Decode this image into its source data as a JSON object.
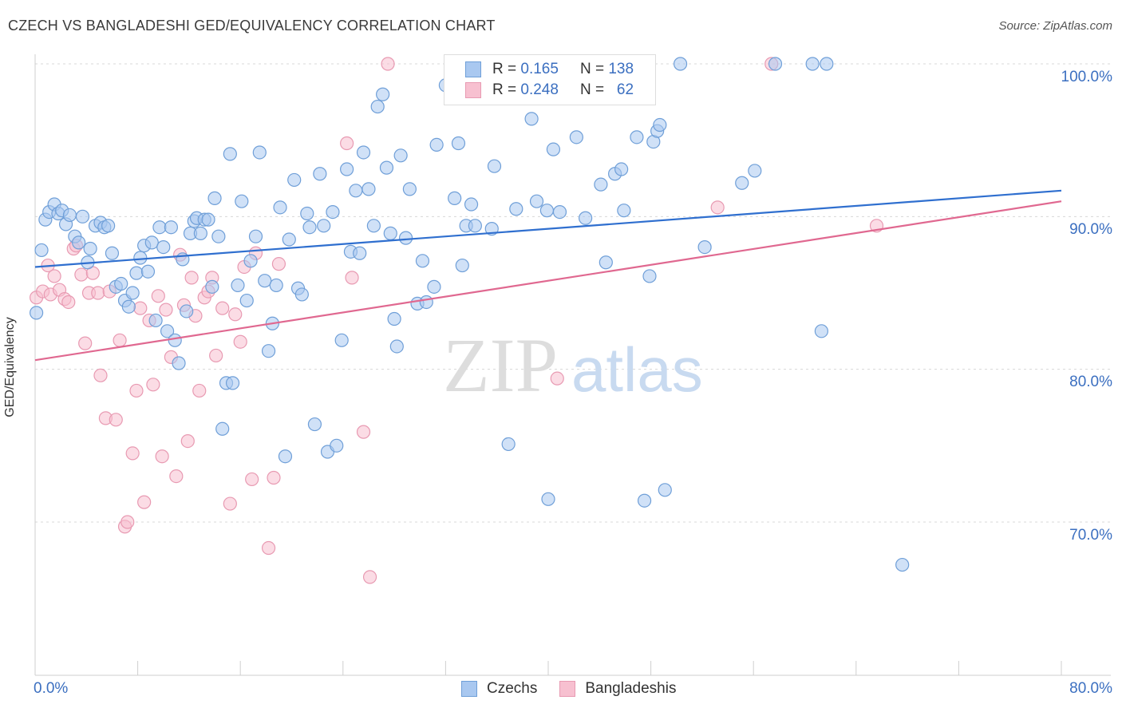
{
  "header": {
    "title": "CZECH VS BANGLADESHI GED/EQUIVALENCY CORRELATION CHART",
    "source": "Source: ZipAtlas.com"
  },
  "watermark": {
    "zip": "ZIP",
    "atlas": "atlas"
  },
  "legend": {
    "czech": {
      "r_label": "R =",
      "r_value": "0.165",
      "n_label": "N =",
      "n_value": "138"
    },
    "bangladeshi": {
      "r_label": "R =",
      "r_value": "0.248",
      "n_label": "N =",
      "n_value": "62"
    }
  },
  "bottom_legend": {
    "czech": "Czechs",
    "bangladeshi": "Bangladeshis"
  },
  "colors": {
    "czech_fill": "#a9c8f0",
    "czech_stroke": "#6f9fd8",
    "czech_line": "#2f6fcf",
    "bangla_fill": "#f7c0d0",
    "bangla_stroke": "#e89ab2",
    "bangla_line": "#e06890",
    "axis_text": "#3b6fc0",
    "grid": "#d8d8d8"
  },
  "chart_data": {
    "type": "scatter",
    "title": "CZECH VS BANGLADESHI GED/EQUIVALENCY CORRELATION CHART",
    "xlabel": "",
    "ylabel": "GED/Equivalency",
    "xlim": [
      0,
      80
    ],
    "ylim": [
      60,
      102
    ],
    "x_tick_labels": [
      "0.0%",
      "80.0%"
    ],
    "y_ticks": [
      70,
      80,
      90,
      100
    ],
    "y_tick_labels": [
      "70.0%",
      "80.0%",
      "90.0%",
      "100.0%"
    ],
    "grid": true,
    "series": [
      {
        "name": "Czechs",
        "trend": {
          "x": [
            0,
            80
          ],
          "y": [
            86.7,
            91.7
          ]
        },
        "points": [
          [
            0.1,
            83.7
          ],
          [
            0.5,
            87.8
          ],
          [
            0.8,
            89.8
          ],
          [
            1.1,
            90.3
          ],
          [
            1.5,
            90.8
          ],
          [
            1.8,
            90.2
          ],
          [
            2.1,
            90.4
          ],
          [
            2.4,
            89.5
          ],
          [
            2.7,
            90.1
          ],
          [
            3.1,
            88.7
          ],
          [
            3.4,
            88.3
          ],
          [
            3.7,
            90.0
          ],
          [
            4.1,
            87.0
          ],
          [
            4.3,
            87.9
          ],
          [
            4.7,
            89.4
          ],
          [
            5.1,
            89.6
          ],
          [
            5.4,
            89.3
          ],
          [
            5.7,
            89.4
          ],
          [
            6.0,
            87.6
          ],
          [
            6.3,
            85.4
          ],
          [
            6.7,
            85.6
          ],
          [
            7.0,
            84.5
          ],
          [
            7.3,
            84.1
          ],
          [
            7.6,
            85.0
          ],
          [
            7.9,
            86.3
          ],
          [
            8.2,
            87.3
          ],
          [
            8.5,
            88.1
          ],
          [
            8.8,
            86.4
          ],
          [
            9.1,
            88.3
          ],
          [
            9.4,
            83.2
          ],
          [
            9.7,
            89.3
          ],
          [
            10.0,
            88.0
          ],
          [
            10.3,
            82.5
          ],
          [
            10.6,
            89.3
          ],
          [
            10.9,
            81.9
          ],
          [
            11.2,
            80.4
          ],
          [
            11.5,
            87.2
          ],
          [
            11.8,
            83.8
          ],
          [
            12.1,
            88.9
          ],
          [
            12.4,
            89.7
          ],
          [
            12.6,
            89.9
          ],
          [
            12.9,
            88.9
          ],
          [
            13.2,
            89.8
          ],
          [
            13.5,
            89.8
          ],
          [
            13.8,
            85.4
          ],
          [
            14.0,
            91.2
          ],
          [
            14.3,
            88.7
          ],
          [
            14.6,
            76.1
          ],
          [
            14.9,
            79.1
          ],
          [
            15.2,
            94.1
          ],
          [
            15.4,
            79.1
          ],
          [
            15.8,
            85.5
          ],
          [
            16.1,
            91.0
          ],
          [
            16.5,
            84.5
          ],
          [
            16.8,
            87.1
          ],
          [
            17.2,
            88.7
          ],
          [
            17.5,
            94.2
          ],
          [
            17.9,
            85.8
          ],
          [
            18.2,
            81.2
          ],
          [
            18.5,
            83.0
          ],
          [
            18.8,
            85.5
          ],
          [
            19.1,
            90.6
          ],
          [
            19.5,
            74.3
          ],
          [
            19.8,
            88.5
          ],
          [
            20.2,
            92.4
          ],
          [
            20.5,
            85.3
          ],
          [
            20.8,
            84.9
          ],
          [
            21.2,
            90.2
          ],
          [
            21.4,
            89.3
          ],
          [
            21.8,
            76.4
          ],
          [
            22.2,
            92.8
          ],
          [
            22.5,
            89.4
          ],
          [
            22.8,
            74.6
          ],
          [
            23.2,
            90.3
          ],
          [
            23.5,
            75.0
          ],
          [
            23.9,
            81.9
          ],
          [
            24.3,
            93.1
          ],
          [
            24.6,
            87.7
          ],
          [
            25.0,
            91.7
          ],
          [
            25.3,
            87.6
          ],
          [
            25.6,
            94.2
          ],
          [
            26.0,
            91.8
          ],
          [
            26.4,
            89.4
          ],
          [
            26.7,
            97.2
          ],
          [
            27.1,
            98.0
          ],
          [
            27.4,
            93.2
          ],
          [
            27.7,
            88.9
          ],
          [
            28.0,
            83.3
          ],
          [
            28.2,
            81.5
          ],
          [
            28.5,
            94.0
          ],
          [
            28.9,
            88.6
          ],
          [
            29.2,
            91.8
          ],
          [
            29.8,
            84.3
          ],
          [
            30.2,
            87.1
          ],
          [
            30.5,
            84.4
          ],
          [
            31.1,
            85.4
          ],
          [
            31.3,
            94.7
          ],
          [
            32.0,
            98.6
          ],
          [
            32.7,
            91.2
          ],
          [
            33.0,
            94.8
          ],
          [
            33.3,
            86.8
          ],
          [
            33.6,
            89.4
          ],
          [
            34.0,
            90.8
          ],
          [
            34.3,
            89.4
          ],
          [
            35.6,
            89.2
          ],
          [
            35.8,
            93.3
          ],
          [
            36.9,
            75.1
          ],
          [
            37.2,
            100.0
          ],
          [
            37.5,
            90.5
          ],
          [
            38.7,
            96.4
          ],
          [
            39.1,
            91.0
          ],
          [
            39.9,
            90.4
          ],
          [
            40.0,
            71.5
          ],
          [
            40.4,
            94.4
          ],
          [
            40.9,
            90.3
          ],
          [
            42.2,
            95.2
          ],
          [
            42.9,
            89.9
          ],
          [
            44.1,
            92.1
          ],
          [
            44.5,
            87.0
          ],
          [
            45.2,
            92.8
          ],
          [
            45.7,
            93.1
          ],
          [
            45.9,
            90.4
          ],
          [
            46.9,
            95.2
          ],
          [
            47.5,
            71.4
          ],
          [
            47.9,
            86.1
          ],
          [
            48.2,
            94.9
          ],
          [
            48.5,
            95.6
          ],
          [
            48.7,
            96.0
          ],
          [
            49.1,
            72.1
          ],
          [
            50.3,
            100.0
          ],
          [
            52.2,
            88.0
          ],
          [
            55.1,
            92.2
          ],
          [
            56.1,
            93.0
          ],
          [
            57.7,
            100.0
          ],
          [
            60.6,
            100.0
          ],
          [
            61.7,
            100.0
          ],
          [
            61.3,
            82.5
          ],
          [
            67.6,
            67.2
          ]
        ]
      },
      {
        "name": "Bangladeshis",
        "trend": {
          "x": [
            0,
            80
          ],
          "y": [
            80.6,
            91.0
          ]
        },
        "points": [
          [
            0.1,
            84.7
          ],
          [
            0.6,
            85.1
          ],
          [
            1.0,
            86.8
          ],
          [
            1.2,
            84.9
          ],
          [
            1.5,
            86.1
          ],
          [
            1.9,
            85.2
          ],
          [
            2.3,
            84.6
          ],
          [
            2.6,
            84.4
          ],
          [
            3.0,
            87.9
          ],
          [
            3.2,
            88.1
          ],
          [
            3.6,
            86.2
          ],
          [
            3.9,
            81.7
          ],
          [
            4.2,
            85.0
          ],
          [
            4.5,
            86.3
          ],
          [
            4.9,
            85.0
          ],
          [
            5.1,
            79.6
          ],
          [
            5.5,
            76.8
          ],
          [
            5.8,
            85.1
          ],
          [
            6.3,
            76.7
          ],
          [
            6.6,
            81.9
          ],
          [
            7.0,
            69.7
          ],
          [
            7.2,
            70.0
          ],
          [
            7.6,
            74.5
          ],
          [
            7.9,
            78.6
          ],
          [
            8.2,
            84.0
          ],
          [
            8.5,
            71.3
          ],
          [
            8.9,
            83.2
          ],
          [
            9.2,
            79.0
          ],
          [
            9.6,
            84.8
          ],
          [
            9.9,
            74.3
          ],
          [
            10.2,
            83.9
          ],
          [
            10.6,
            80.8
          ],
          [
            11.0,
            73.0
          ],
          [
            11.3,
            87.5
          ],
          [
            11.6,
            84.2
          ],
          [
            11.9,
            75.3
          ],
          [
            12.2,
            86.0
          ],
          [
            12.5,
            83.5
          ],
          [
            12.8,
            78.6
          ],
          [
            13.2,
            84.7
          ],
          [
            13.5,
            85.1
          ],
          [
            13.8,
            86.0
          ],
          [
            14.1,
            80.9
          ],
          [
            14.6,
            84.0
          ],
          [
            15.2,
            71.2
          ],
          [
            15.6,
            83.6
          ],
          [
            16.3,
            86.7
          ],
          [
            16.9,
            72.8
          ],
          [
            17.2,
            87.6
          ],
          [
            18.2,
            68.3
          ],
          [
            18.6,
            72.9
          ],
          [
            19.0,
            86.9
          ],
          [
            24.3,
            94.8
          ],
          [
            24.7,
            86.0
          ],
          [
            25.6,
            75.9
          ],
          [
            26.1,
            66.4
          ],
          [
            27.5,
            100.0
          ],
          [
            40.7,
            79.4
          ],
          [
            53.2,
            90.6
          ],
          [
            57.4,
            100.0
          ],
          [
            65.6,
            89.4
          ],
          [
            16.0,
            81.8
          ]
        ]
      }
    ]
  }
}
